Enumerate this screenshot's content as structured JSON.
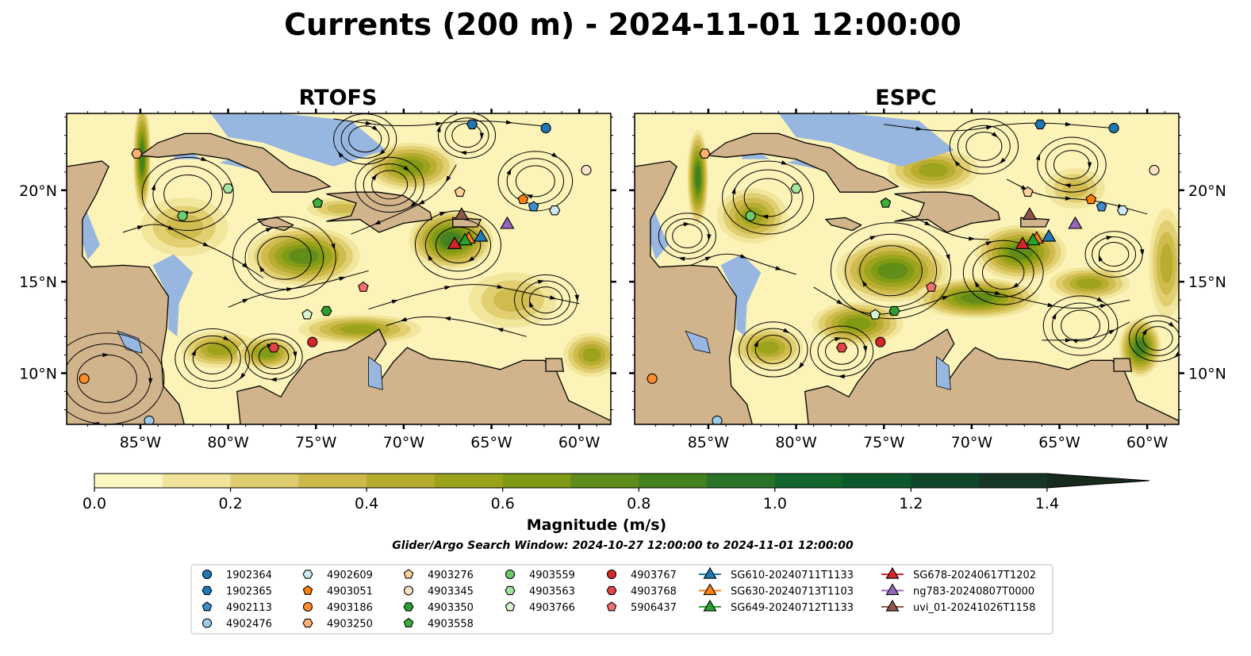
{
  "title": "Currents (200 m) - 2024-11-01 12:00:00",
  "panels": [
    {
      "name": "RTOFS"
    },
    {
      "name": "ESPC"
    }
  ],
  "map_axes": {
    "lon_ticks": [
      {
        "value": -85,
        "label": "85°W"
      },
      {
        "value": -80,
        "label": "80°W"
      },
      {
        "value": -75,
        "label": "75°W"
      },
      {
        "value": -70,
        "label": "70°W"
      },
      {
        "value": -65,
        "label": "65°W"
      },
      {
        "value": -60,
        "label": "60°W"
      }
    ],
    "lat_ticks": [
      {
        "value": 20,
        "label": "20°N"
      },
      {
        "value": 15,
        "label": "15°N"
      },
      {
        "value": 10,
        "label": "10°N"
      }
    ],
    "lon_range": [
      -89.2,
      -58.2
    ],
    "lat_range": [
      7.2,
      24.2
    ]
  },
  "colorbar": {
    "label": "Magnitude (m/s)",
    "min": 0.0,
    "max": 1.5,
    "step": 0.1,
    "extend": "max",
    "ticks": [
      "0.0",
      "0.2",
      "0.4",
      "0.6",
      "0.8",
      "1.0",
      "1.2",
      "1.4"
    ],
    "colors": [
      "#fdf7c4",
      "#f1e49a",
      "#dfcc6e",
      "#cdb84a",
      "#b5ac2e",
      "#9aa21c",
      "#7f9a14",
      "#5f8c1a",
      "#438020",
      "#2a7225",
      "#12652c",
      "#0c5a2b",
      "#10472a",
      "#163626",
      "#182a1e"
    ]
  },
  "subtitle": "Glider/Argo Search Window: 2024-10-27 12:00:00 to 2024-11-01 12:00:00",
  "legend": {
    "columns": [
      [
        {
          "label": "1902364",
          "marker": "circle",
          "color": "#1f77b4"
        },
        {
          "label": "1902365",
          "marker": "hexagon",
          "color": "#1f77b4"
        },
        {
          "label": "4902113",
          "marker": "pentagon",
          "color": "#3a8fd0"
        },
        {
          "label": "4902476",
          "marker": "circle",
          "color": "#9ccbea"
        }
      ],
      [
        {
          "label": "4902609",
          "marker": "hexagon",
          "color": "#cfe8f6"
        },
        {
          "label": "4903051",
          "marker": "pentagon",
          "color": "#ff7f0e"
        },
        {
          "label": "4903186",
          "marker": "circle",
          "color": "#ff8c2a"
        },
        {
          "label": "4903250",
          "marker": "hexagon",
          "color": "#ffb070"
        }
      ],
      [
        {
          "label": "4903276",
          "marker": "pentagon",
          "color": "#ffd09a"
        },
        {
          "label": "4903345",
          "marker": "circle",
          "color": "#ffe3c8"
        },
        {
          "label": "4903350",
          "marker": "hexagon",
          "color": "#2ca02c"
        },
        {
          "label": "4903558",
          "marker": "pentagon",
          "color": "#3cb03c"
        }
      ],
      [
        {
          "label": "4903559",
          "marker": "circle",
          "color": "#6ccc6c"
        },
        {
          "label": "4903563",
          "marker": "hexagon",
          "color": "#a6e3a0"
        },
        {
          "label": "4903766",
          "marker": "pentagon",
          "color": "#d8f5d0"
        }
      ],
      [
        {
          "label": "4903767",
          "marker": "circle",
          "color": "#d62728"
        },
        {
          "label": "4903768",
          "marker": "hexagon",
          "color": "#e04444"
        },
        {
          "label": "5906437",
          "marker": "pentagon",
          "color": "#f07070"
        }
      ],
      [
        {
          "label": "SG610-20240711T1133",
          "marker": "triangle",
          "color": "#1f77b4"
        },
        {
          "label": "SG630-20240713T1103",
          "marker": "triangle",
          "color": "#ff7f0e"
        },
        {
          "label": "SG649-20240712T1133",
          "marker": "triangle",
          "color": "#2ca02c"
        }
      ],
      [
        {
          "label": "SG678-20240617T1202",
          "marker": "triangle",
          "color": "#d62728"
        },
        {
          "label": "ng783-20240807T0000",
          "marker": "triangle",
          "color": "#9467bd"
        },
        {
          "label": "uvi_01-20241026T1158",
          "marker": "triangle",
          "color": "#8c564b"
        }
      ]
    ]
  },
  "markers": [
    {
      "label": "1902364",
      "lon": -61.9,
      "lat": 23.4,
      "marker": "circle",
      "color": "#1f77b4"
    },
    {
      "label": "1902365",
      "lon": -66.1,
      "lat": 23.6,
      "marker": "hexagon",
      "color": "#1f77b4"
    },
    {
      "label": "4902113",
      "lon": -62.6,
      "lat": 19.1,
      "marker": "pentagon",
      "color": "#3a8fd0"
    },
    {
      "label": "4902476",
      "lon": -84.5,
      "lat": 7.4,
      "marker": "circle",
      "color": "#9ccbea"
    },
    {
      "label": "4902609",
      "lon": -61.4,
      "lat": 18.9,
      "marker": "hexagon",
      "color": "#cfe8f6"
    },
    {
      "label": "4903051",
      "lon": -63.2,
      "lat": 19.5,
      "marker": "pentagon",
      "color": "#ff7f0e"
    },
    {
      "label": "4903186",
      "lon": -88.2,
      "lat": 9.7,
      "marker": "circle",
      "color": "#ff8c2a"
    },
    {
      "label": "4903250",
      "lon": -85.2,
      "lat": 22.0,
      "marker": "hexagon",
      "color": "#ffb070"
    },
    {
      "label": "4903276",
      "lon": -66.8,
      "lat": 19.9,
      "marker": "pentagon",
      "color": "#ffd09a"
    },
    {
      "label": "4903345",
      "lon": -59.6,
      "lat": 21.1,
      "marker": "circle",
      "color": "#ffe3c8"
    },
    {
      "label": "4903350",
      "lon": -74.4,
      "lat": 13.4,
      "marker": "hexagon",
      "color": "#2ca02c"
    },
    {
      "label": "4903558",
      "lon": -74.9,
      "lat": 19.3,
      "marker": "pentagon",
      "color": "#3cb03c"
    },
    {
      "label": "4903559",
      "lon": -82.6,
      "lat": 18.6,
      "marker": "circle",
      "color": "#6ccc6c"
    },
    {
      "label": "4903563",
      "lon": -80.0,
      "lat": 20.1,
      "marker": "hexagon",
      "color": "#a6e3a0"
    },
    {
      "label": "4903766",
      "lon": -75.5,
      "lat": 13.2,
      "marker": "pentagon",
      "color": "#d8f5d0"
    },
    {
      "label": "4903767",
      "lon": -75.2,
      "lat": 11.7,
      "marker": "circle",
      "color": "#d62728"
    },
    {
      "label": "4903768",
      "lon": -77.4,
      "lat": 11.4,
      "marker": "hexagon",
      "color": "#e04444"
    },
    {
      "label": "5906437",
      "lon": -72.3,
      "lat": 14.7,
      "marker": "pentagon",
      "color": "#f07070"
    },
    {
      "label": "SG610-20240711T1133",
      "lon": -65.6,
      "lat": 17.5,
      "marker": "triangle",
      "color": "#1f77b4"
    },
    {
      "label": "SG630-20240713T1103",
      "lon": -66.3,
      "lat": 17.4,
      "marker": "triangle",
      "color": "#ff7f0e"
    },
    {
      "label": "SG649-20240712T1133",
      "lon": -66.5,
      "lat": 17.3,
      "marker": "triangle",
      "color": "#2ca02c"
    },
    {
      "label": "SG678-20240617T1202",
      "lon": -67.1,
      "lat": 17.1,
      "marker": "triangle",
      "color": "#d62728"
    },
    {
      "label": "ng783-20240807T0000",
      "lon": -64.1,
      "lat": 18.2,
      "marker": "triangle",
      "color": "#9467bd"
    },
    {
      "label": "uvi_01-20241026T1158",
      "lon": -66.7,
      "lat": 18.7,
      "marker": "triangle",
      "color": "#8c564b"
    }
  ]
}
